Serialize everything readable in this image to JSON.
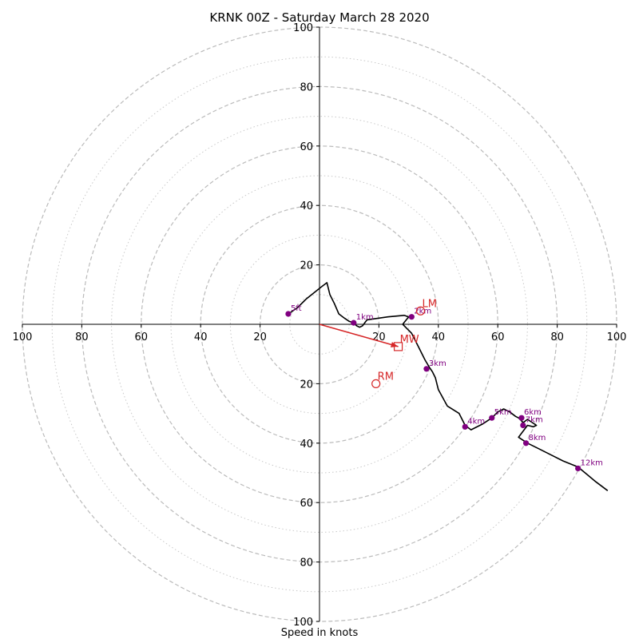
{
  "chart_data": {
    "type": "scatter",
    "title": "KRNK 00Z - Saturday March 28 2020",
    "xlabel": "Speed in knots",
    "ylabel": "",
    "xlim": [
      -100,
      100
    ],
    "ylim": [
      -100,
      100
    ],
    "ring_speeds_major": [
      20,
      40,
      60,
      80,
      100
    ],
    "ring_speeds_minor": [
      10,
      30,
      50,
      70,
      90
    ],
    "tick_labels": {
      "x_left": [
        "100",
        "80",
        "60",
        "40",
        "20"
      ],
      "x_right": [
        "20",
        "40",
        "60",
        "80",
        "100"
      ],
      "y_top": [
        "100",
        "80",
        "60",
        "40",
        "20"
      ],
      "y_bottom": [
        "20",
        "40",
        "60",
        "80",
        "100"
      ]
    },
    "hodograph_trace": {
      "u": [
        -10.5,
        -7.5,
        -4.5,
        0.5,
        2.5,
        3.5,
        5,
        6.5,
        8.5,
        10,
        11.5,
        12.5,
        13.5,
        14.5,
        16,
        23,
        28.5,
        30,
        28,
        31,
        33,
        35.5,
        37,
        38,
        39,
        40,
        43,
        47,
        49,
        51,
        55,
        58,
        60,
        62,
        64,
        66,
        67,
        68.5,
        68,
        70,
        73,
        72,
        70,
        67,
        70,
        74,
        78,
        82,
        87,
        90,
        93,
        97
      ],
      "v": [
        3.5,
        5.5,
        8.5,
        12.5,
        14,
        10,
        7,
        3.5,
        2,
        1,
        0.5,
        -0.5,
        -1,
        -0.5,
        1.5,
        2.5,
        3,
        2.5,
        0,
        -3,
        -7,
        -12,
        -14.5,
        -16,
        -18,
        -22,
        -27.5,
        -30,
        -34,
        -35.5,
        -33.5,
        -31.5,
        -29.5,
        -28.5,
        -29.5,
        -31,
        -31.5,
        -33,
        -33.5,
        -32,
        -34,
        -34.5,
        -34,
        -38,
        -40,
        -42,
        -44,
        -46,
        -48,
        -50.5,
        -53,
        -56
      ]
    },
    "height_markers": [
      {
        "label": "5ft",
        "u": -10.5,
        "v": 3.5
      },
      {
        "label": "1km",
        "u": 11.5,
        "v": 0.5
      },
      {
        "label": "2km",
        "u": 31,
        "v": 2.5
      },
      {
        "label": "3km",
        "u": 36,
        "v": -15
      },
      {
        "label": "4km",
        "u": 49,
        "v": -34.5
      },
      {
        "label": "5km",
        "u": 58,
        "v": -31.5
      },
      {
        "label": "6km",
        "u": 68,
        "v": -31.5
      },
      {
        "label": "7km",
        "u": 68.5,
        "v": -34
      },
      {
        "label": "8km",
        "u": 69.5,
        "v": -40
      },
      {
        "label": "12km",
        "u": 87,
        "v": -48.5
      }
    ],
    "storm_motion": [
      {
        "label": "LM",
        "u": 34,
        "v": 4.5,
        "marker": "circle"
      },
      {
        "label": "MW",
        "u": 26.5,
        "v": -7.5,
        "marker": "square"
      },
      {
        "label": "RM",
        "u": 19,
        "v": -20,
        "marker": "circle"
      }
    ],
    "mean_wind_vector": {
      "u": 26.5,
      "v": -7.5
    },
    "colors": {
      "trace": "#000000",
      "markers": "#800080",
      "storm_motion": "#d62728",
      "rings": "#bbbbbb"
    },
    "grid": true
  }
}
